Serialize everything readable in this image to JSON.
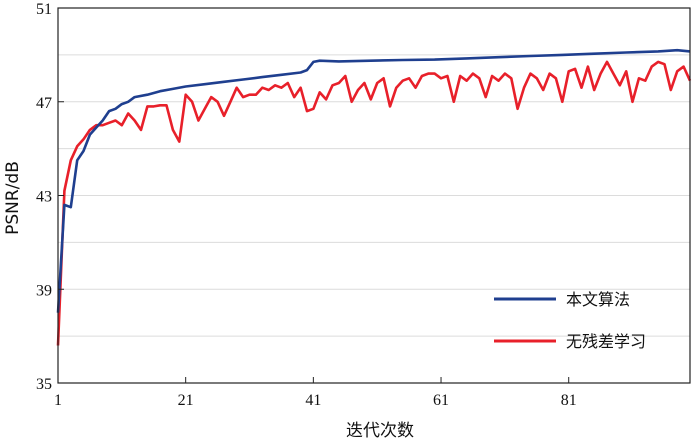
{
  "chart_data": {
    "type": "line",
    "title": "",
    "xlabel": "迭代次数",
    "ylabel": "PSNR/dB",
    "xlim": [
      1,
      100
    ],
    "ylim": [
      35,
      51
    ],
    "x_ticks": [
      "1",
      "21",
      "41",
      "61",
      "81"
    ],
    "y_ticks": [
      "35",
      "39",
      "43",
      "47",
      "51"
    ],
    "grid": "horizontal",
    "legend_position": "bottom-right",
    "series": [
      {
        "name": "本文算法",
        "color": "#1f3f8f",
        "points": [
          [
            1,
            38.0
          ],
          [
            2,
            42.6
          ],
          [
            3,
            42.5
          ],
          [
            4,
            44.5
          ],
          [
            5,
            44.9
          ],
          [
            6,
            45.6
          ],
          [
            7,
            45.9
          ],
          [
            8,
            46.2
          ],
          [
            9,
            46.6
          ],
          [
            10,
            46.7
          ],
          [
            11,
            46.9
          ],
          [
            12,
            47.0
          ],
          [
            13,
            47.2
          ],
          [
            15,
            47.3
          ],
          [
            17,
            47.45
          ],
          [
            19,
            47.55
          ],
          [
            21,
            47.65
          ],
          [
            24,
            47.75
          ],
          [
            27,
            47.85
          ],
          [
            30,
            47.95
          ],
          [
            33,
            48.05
          ],
          [
            36,
            48.15
          ],
          [
            39,
            48.25
          ],
          [
            40,
            48.35
          ],
          [
            41,
            48.7
          ],
          [
            42,
            48.75
          ],
          [
            45,
            48.72
          ],
          [
            50,
            48.75
          ],
          [
            55,
            48.78
          ],
          [
            60,
            48.8
          ],
          [
            65,
            48.85
          ],
          [
            70,
            48.9
          ],
          [
            75,
            48.95
          ],
          [
            80,
            49.0
          ],
          [
            85,
            49.05
          ],
          [
            90,
            49.1
          ],
          [
            95,
            49.15
          ],
          [
            98,
            49.2
          ],
          [
            100,
            49.15
          ]
        ]
      },
      {
        "name": "无残差学习",
        "color": "#e8202a",
        "points": [
          [
            1,
            36.6
          ],
          [
            2,
            43.2
          ],
          [
            3,
            44.5
          ],
          [
            4,
            45.1
          ],
          [
            5,
            45.4
          ],
          [
            6,
            45.8
          ],
          [
            7,
            46.0
          ],
          [
            8,
            46.0
          ],
          [
            9,
            46.1
          ],
          [
            10,
            46.2
          ],
          [
            11,
            46.0
          ],
          [
            12,
            46.5
          ],
          [
            13,
            46.2
          ],
          [
            14,
            45.8
          ],
          [
            15,
            46.8
          ],
          [
            16,
            46.8
          ],
          [
            17,
            46.85
          ],
          [
            18,
            46.85
          ],
          [
            19,
            45.8
          ],
          [
            20,
            45.3
          ],
          [
            21,
            47.3
          ],
          [
            22,
            47.0
          ],
          [
            23,
            46.2
          ],
          [
            24,
            46.7
          ],
          [
            25,
            47.2
          ],
          [
            26,
            47.0
          ],
          [
            27,
            46.4
          ],
          [
            28,
            47.0
          ],
          [
            29,
            47.6
          ],
          [
            30,
            47.2
          ],
          [
            31,
            47.3
          ],
          [
            32,
            47.3
          ],
          [
            33,
            47.6
          ],
          [
            34,
            47.5
          ],
          [
            35,
            47.7
          ],
          [
            36,
            47.6
          ],
          [
            37,
            47.8
          ],
          [
            38,
            47.2
          ],
          [
            39,
            47.6
          ],
          [
            40,
            46.6
          ],
          [
            41,
            46.7
          ],
          [
            42,
            47.4
          ],
          [
            43,
            47.1
          ],
          [
            44,
            47.7
          ],
          [
            45,
            47.8
          ],
          [
            46,
            48.1
          ],
          [
            47,
            47.0
          ],
          [
            48,
            47.5
          ],
          [
            49,
            47.8
          ],
          [
            50,
            47.1
          ],
          [
            51,
            47.8
          ],
          [
            52,
            48.0
          ],
          [
            53,
            46.8
          ],
          [
            54,
            47.6
          ],
          [
            55,
            47.9
          ],
          [
            56,
            48.0
          ],
          [
            57,
            47.6
          ],
          [
            58,
            48.1
          ],
          [
            59,
            48.2
          ],
          [
            60,
            48.2
          ],
          [
            61,
            48.0
          ],
          [
            62,
            48.1
          ],
          [
            63,
            47.0
          ],
          [
            64,
            48.1
          ],
          [
            65,
            47.9
          ],
          [
            66,
            48.2
          ],
          [
            67,
            48.0
          ],
          [
            68,
            47.2
          ],
          [
            69,
            48.1
          ],
          [
            70,
            47.9
          ],
          [
            71,
            48.2
          ],
          [
            72,
            48.0
          ],
          [
            73,
            46.7
          ],
          [
            74,
            47.6
          ],
          [
            75,
            48.2
          ],
          [
            76,
            48.0
          ],
          [
            77,
            47.5
          ],
          [
            78,
            48.2
          ],
          [
            79,
            48.0
          ],
          [
            80,
            47.0
          ],
          [
            81,
            48.3
          ],
          [
            82,
            48.4
          ],
          [
            83,
            47.6
          ],
          [
            84,
            48.5
          ],
          [
            85,
            47.5
          ],
          [
            86,
            48.2
          ],
          [
            87,
            48.7
          ],
          [
            88,
            48.2
          ],
          [
            89,
            47.7
          ],
          [
            90,
            48.3
          ],
          [
            91,
            47.0
          ],
          [
            92,
            48.0
          ],
          [
            93,
            47.9
          ],
          [
            94,
            48.5
          ],
          [
            95,
            48.7
          ],
          [
            96,
            48.6
          ],
          [
            97,
            47.5
          ],
          [
            98,
            48.3
          ],
          [
            99,
            48.5
          ],
          [
            100,
            47.9
          ]
        ]
      }
    ]
  }
}
